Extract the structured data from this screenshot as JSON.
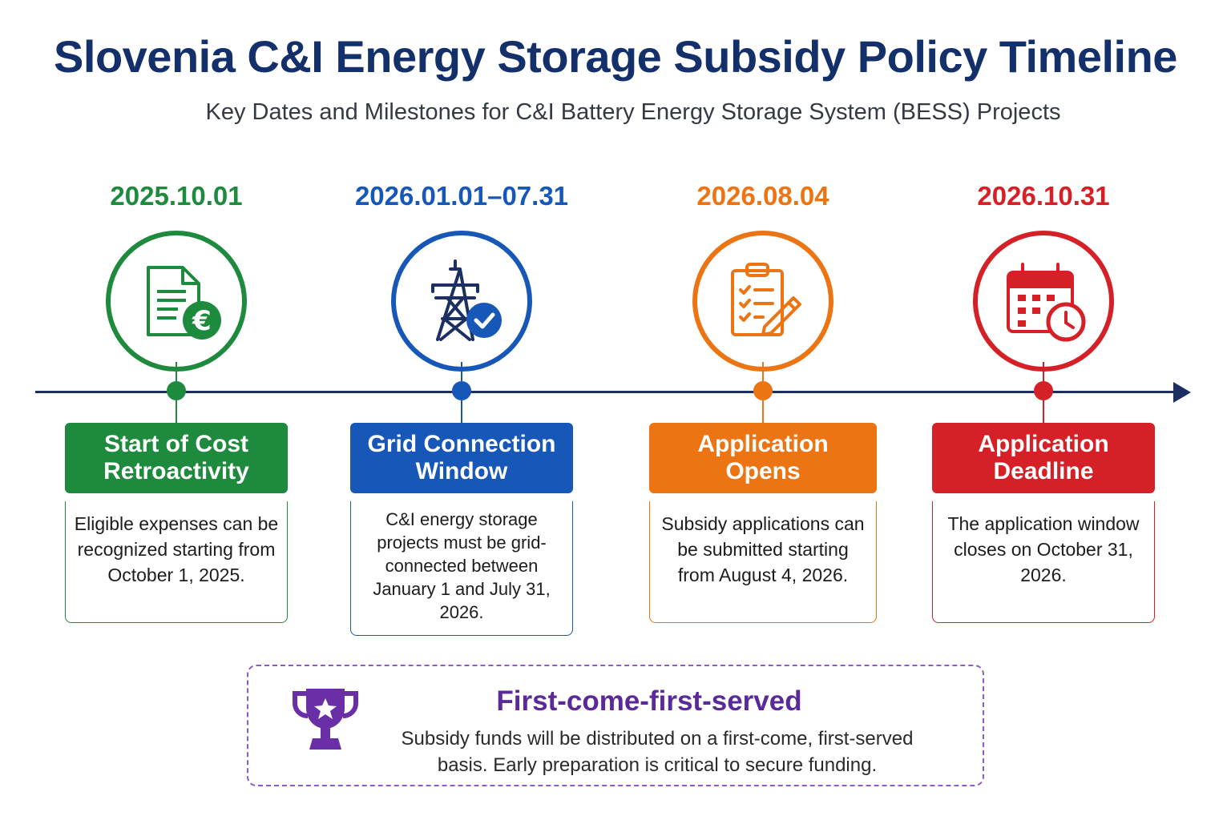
{
  "title": "Slovenia C&I Energy Storage Subsidy Policy Timeline",
  "subtitle": "Key Dates and Milestones for C&I Battery Energy Storage System (BESS) Projects",
  "milestones": [
    {
      "date": "2025.10.01",
      "heading": "Start of Cost Retroactivity",
      "description": "Eligible expenses can be recognized starting from October 1, 2025.",
      "color": "#1e8a3e",
      "icon": "document-euro-icon"
    },
    {
      "date": "2026.01.01–07.31",
      "heading": "Grid Connection Window",
      "description": "C&I energy storage projects must be grid-connected between January 1 and July 31, 2026.",
      "color": "#1757b8",
      "icon": "power-tower-check-icon"
    },
    {
      "date": "2026.08.04",
      "heading": "Application Opens",
      "description": "Subsidy applications can be submitted starting from August 4, 2026.",
      "color": "#ec7412",
      "icon": "clipboard-pencil-icon"
    },
    {
      "date": "2026.10.31",
      "heading": "Application Deadline",
      "description": "The application window closes on October 31, 2026.",
      "color": "#d62027",
      "icon": "calendar-clock-icon"
    }
  ],
  "callout": {
    "title": "First-come-first-served",
    "text": "Subsidy funds will be distributed on a first-come, first-served basis. Early preparation is critical to secure funding.",
    "icon": "trophy-star-icon",
    "color": "#6a2fa6"
  },
  "colors": {
    "title": "#14306b",
    "axis": "#1b2f63"
  }
}
